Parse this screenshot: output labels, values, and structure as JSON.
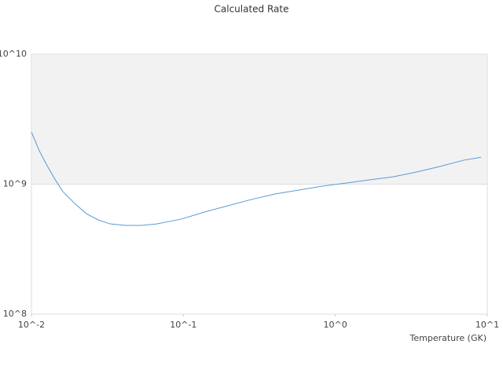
{
  "chart_data": {
    "type": "line",
    "title": "Calculated Rate",
    "x_label": "Temperature (GK)",
    "x_log": true,
    "y_log": true,
    "band_color": "#f2f2f2",
    "xlim": [
      0.01,
      10
    ],
    "ylim": [
      100000000,
      10000000000
    ],
    "xticks": [
      {
        "value": 0.01,
        "label": "10^-2"
      },
      {
        "value": 0.1,
        "label": "10^-1"
      },
      {
        "value": 1,
        "label": "10^0"
      },
      {
        "value": 10,
        "label": "10^1"
      }
    ],
    "yticks": [
      {
        "value": 100000000,
        "label": "10^8"
      },
      {
        "value": 1000000000,
        "label": "10^9"
      },
      {
        "value": 10000000000,
        "label": "10^10"
      }
    ],
    "x": [
      0.01,
      0.01126,
      0.01268,
      0.01429,
      0.0161,
      0.01926,
      0.023,
      0.0275,
      0.0329,
      0.0418,
      0.053,
      0.0673,
      0.0962,
      0.1375,
      0.196,
      0.281,
      0.401,
      0.574,
      0.82,
      1.17,
      1.68,
      2.4,
      3.43,
      4.9,
      7.0,
      9.1
    ],
    "series": [
      {
        "color": "#5b9bd5",
        "values": [
          2520000000,
          1810000000,
          1390000000,
          1090000000,
          877000000,
          711000000,
          593000000,
          531000000,
          495000000,
          482000000,
          482000000,
          495000000,
          538000000,
          610000000,
          682000000,
          763000000,
          840000000,
          901000000,
          966000000,
          1020000000,
          1080000000,
          1140000000,
          1240000000,
          1370000000,
          1530000000,
          1610000000
        ]
      }
    ]
  }
}
